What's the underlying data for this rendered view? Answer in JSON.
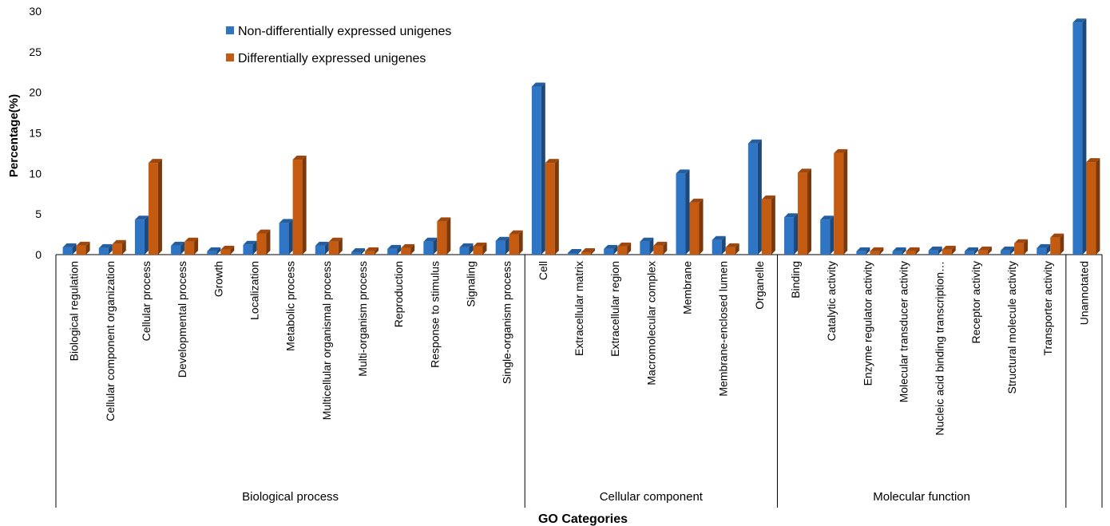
{
  "chart_data": {
    "type": "bar",
    "style": "3d-clustered",
    "ylabel": "Percentage(%)",
    "xlabel": "GO Categories",
    "ylim": [
      0,
      30
    ],
    "yticks": [
      0,
      5,
      10,
      15,
      20,
      25,
      30
    ],
    "grid": false,
    "legend_position": "top-left",
    "categories": [
      "Biological regulation",
      "Cellular component organization",
      "Cellular process",
      "Developmental process",
      "Growth",
      "Localization",
      "Metabolic process",
      "Multicellular organismal process",
      "Multi-organism process",
      "Reproduction",
      "Response to stimulus",
      "Signaling",
      "Single-organism process",
      "Cell",
      "Extracellular matrix",
      "Extracellular region",
      "Macromolecular complex",
      "Membrane",
      "Membrane-enclosed lumen",
      "Organelle",
      "Binding",
      "Catalytic activity",
      "Enzyme regulator activity",
      "Molecular transducer activity",
      "Nucleic acid binding transcription…",
      "Receptor activity",
      "Structural molecule activity",
      "Transporter activity",
      "Unannotated"
    ],
    "groups": [
      {
        "label": "Biological process",
        "start": 0,
        "end": 12
      },
      {
        "label": "Cellular component",
        "start": 13,
        "end": 19
      },
      {
        "label": "Molecular function",
        "start": 20,
        "end": 27
      },
      {
        "label": "",
        "start": 28,
        "end": 28
      }
    ],
    "series": [
      {
        "name": "Non-differentially expressed unigenes",
        "color": "#2e75c5",
        "values": [
          0.9,
          0.8,
          4.3,
          1.1,
          0.4,
          1.2,
          3.9,
          1.1,
          0.3,
          0.7,
          1.6,
          0.9,
          1.7,
          20.7,
          0.2,
          0.7,
          1.6,
          10.0,
          1.8,
          13.7,
          4.6,
          4.3,
          0.4,
          0.4,
          0.5,
          0.4,
          0.5,
          0.8,
          28.6
        ]
      },
      {
        "name": "Differentially expressed unigenes",
        "color": "#c55a11",
        "values": [
          1.1,
          1.3,
          11.3,
          1.6,
          0.6,
          2.6,
          11.7,
          1.6,
          0.4,
          0.8,
          4.1,
          1.0,
          2.5,
          11.3,
          0.3,
          1.0,
          1.1,
          6.4,
          0.9,
          6.8,
          10.1,
          12.5,
          0.4,
          0.4,
          0.6,
          0.5,
          1.4,
          2.1,
          11.4
        ]
      }
    ]
  }
}
